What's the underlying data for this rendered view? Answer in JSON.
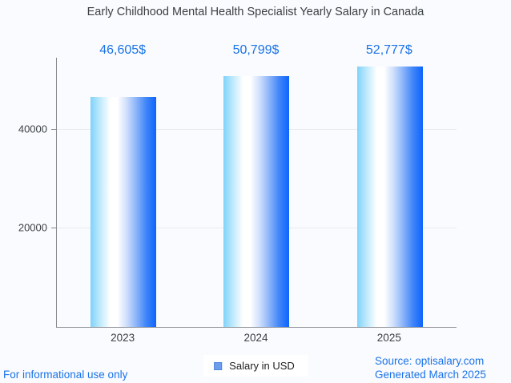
{
  "title": "Early Childhood Mental Health Specialist Yearly Salary in Canada",
  "legend": {
    "label": "Salary in USD",
    "swatch_color": "#6d9eeb"
  },
  "footer": {
    "disclaimer": "For informational use only",
    "source": "Source: optisalary.com",
    "generated": "Generated March 2025"
  },
  "colors": {
    "background": "#fafbfe",
    "accent_blue_text": "#1a73e8",
    "bar_gradient_left": "#7fd2f9",
    "bar_gradient_middle": "#ffffff",
    "bar_gradient_right": "#0d64fc",
    "axis": "#85888c",
    "gridline": "#e8eaed",
    "tick_text": "#3c4043"
  },
  "chart_data": {
    "type": "bar",
    "title": "Early Childhood Mental Health Specialist Yearly Salary in Canada",
    "categories": [
      "2023",
      "2024",
      "2025"
    ],
    "values": [
      46605,
      50799,
      52777
    ],
    "value_labels": [
      "46,605$",
      "50,799$",
      "52,777$"
    ],
    "series": [
      {
        "name": "Salary in USD",
        "values": [
          46605,
          50799,
          52777
        ]
      }
    ],
    "xlabel": "",
    "ylabel": "",
    "yticks": [
      20000,
      40000
    ],
    "ytick_labels": [
      "20000",
      "40000"
    ],
    "ylim": [
      0,
      54600
    ],
    "grid": true,
    "legend_position": "bottom"
  }
}
